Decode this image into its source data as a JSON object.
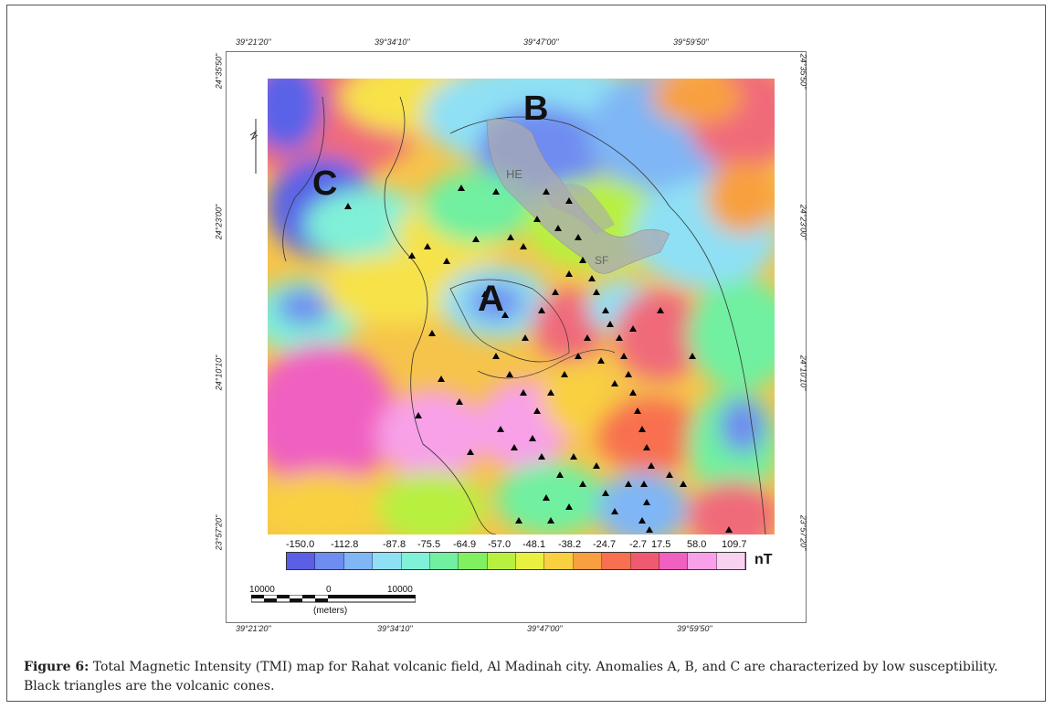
{
  "coords": {
    "top": [
      "39°21'20\"",
      "39°34'10\"",
      "39°47'00\"",
      "39°59'50\""
    ],
    "bottom": [
      "39°21'20\"",
      "39°34'10\"",
      "39°47'00\"",
      "39°59'50\""
    ],
    "left": [
      "24°35'50\"",
      "24°23'00\"",
      "24°10'10\"",
      "23°57'20\""
    ],
    "right": [
      "24°35'50\"",
      "24°23'00\"",
      "24°10'10\"",
      "23°57'20\""
    ]
  },
  "labels": {
    "a": "A",
    "b": "B",
    "c": "C",
    "he": "HE",
    "sf": "SF"
  },
  "colorbar": {
    "ticks": [
      "-150.0",
      "-112.8",
      "-87.8",
      "-75.5",
      "-64.9",
      "-57.0",
      "-48.1",
      "-38.2",
      "-24.7",
      "-2.7",
      "17.5",
      "58.0",
      "109.7"
    ],
    "unit": "nT",
    "colors": [
      "#5a5fe6",
      "#6f8cf0",
      "#7fb6f5",
      "#8fe0f5",
      "#80f0d8",
      "#70f0a0",
      "#80f060",
      "#b8f040",
      "#e8f040",
      "#f8d040",
      "#f8a040",
      "#f87050",
      "#f05a70",
      "#f060c0",
      "#f8a0e8",
      "#f8d0f0"
    ]
  },
  "scalebar": {
    "left_label": "10000",
    "mid_label": "0",
    "right_label": "10000",
    "unit_label": "(meters)"
  },
  "caption": {
    "figure_label": "Figure 6:",
    "text": " Total Magnetic Intensity (TMI) map for Rahat volcanic field, Al Madinah city. Anomalies A, B, and C are characterized by low susceptibility. Black triangles are the volcanic cones."
  }
}
